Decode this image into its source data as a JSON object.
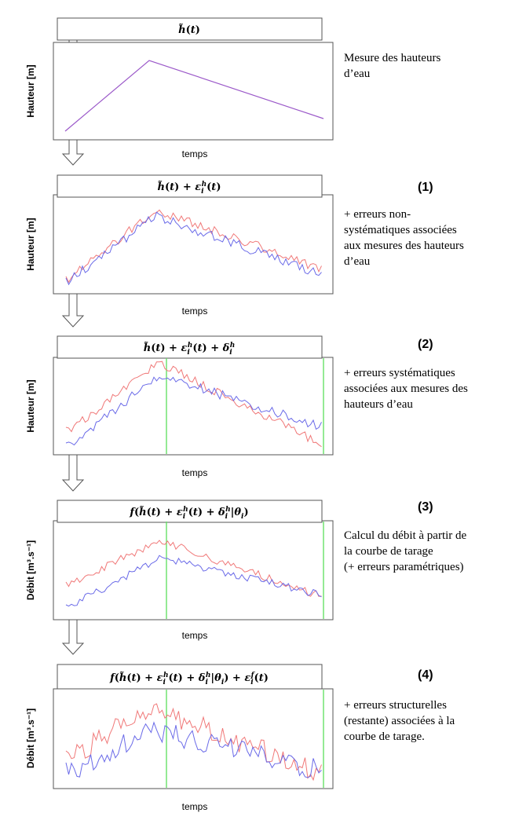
{
  "panels": [
    {
      "formula_html": "<tspan font-style=\"italic\">h̃</tspan>(<tspan font-style=\"italic\">t</tspan>)",
      "ylabel": "Hauteur [m]",
      "xlabel": "temps",
      "step": "",
      "description": [
        "Mesure des hauteurs",
        "d’eau"
      ]
    },
    {
      "formula_html": "<tspan font-style=\"italic\">h̃</tspan>(<tspan font-style=\"italic\">t</tspan>) + <tspan font-style=\"italic\">ε</tspan><tspan font-style=\"italic\" font-size=\"9\" dy=\"4\">i</tspan><tspan font-style=\"italic\" font-size=\"9\" dx=\"-3\" dy=\"-9\">h</tspan><tspan dy=\"5\">(</tspan><tspan font-style=\"italic\">t</tspan>)",
      "ylabel": "Hauteur [m]",
      "xlabel": "temps",
      "step": "(1)",
      "description": [
        "+ erreurs non-",
        "systématiques associées",
        "aux mesures des hauteurs",
        "d’eau"
      ]
    },
    {
      "formula_html": "<tspan font-style=\"italic\">h̃</tspan>(<tspan font-style=\"italic\">t</tspan>) + <tspan font-style=\"italic\">ε</tspan><tspan font-style=\"italic\" font-size=\"9\" dy=\"4\">i</tspan><tspan font-style=\"italic\" font-size=\"9\" dx=\"-3\" dy=\"-9\">h</tspan><tspan dy=\"5\">(</tspan><tspan font-style=\"italic\">t</tspan>) + <tspan font-style=\"italic\">δ</tspan><tspan font-style=\"italic\" font-size=\"9\" dy=\"4\">i</tspan><tspan font-style=\"italic\" font-size=\"9\" dx=\"-3\" dy=\"-9\">h</tspan>",
      "ylabel": "Hauteur [m]",
      "xlabel": "temps",
      "step": "(2)",
      "description": [
        "+ erreurs systématiques",
        "associées aux mesures des",
        "hauteurs d’eau"
      ]
    },
    {
      "formula_html": "<tspan font-style=\"italic\">f</tspan>(<tspan font-style=\"italic\">h̃</tspan>(<tspan font-style=\"italic\">t</tspan>) + <tspan font-style=\"italic\">ε</tspan><tspan font-style=\"italic\" font-size=\"9\" dy=\"4\">i</tspan><tspan font-style=\"italic\" font-size=\"9\" dx=\"-3\" dy=\"-9\">h</tspan><tspan dy=\"5\">(</tspan><tspan font-style=\"italic\">t</tspan>) + <tspan font-style=\"italic\">δ</tspan><tspan font-style=\"italic\" font-size=\"9\" dy=\"4\">i</tspan><tspan font-style=\"italic\" font-size=\"9\" dx=\"-3\" dy=\"-9\">h</tspan><tspan dy=\"5\">|</tspan><tspan font-style=\"italic\">θ</tspan><tspan font-style=\"italic\" font-size=\"9\" dy=\"4\">i</tspan><tspan dy=\"-4\">)</tspan>",
      "ylabel": "Débit [m³.s⁻¹]",
      "xlabel": "temps",
      "step": "(3)",
      "description": [
        "Calcul du débit à partir de",
        "la courbe de tarage",
        "(+ erreurs paramétriques)"
      ]
    },
    {
      "formula_html": "<tspan font-style=\"italic\">f</tspan>(<tspan font-style=\"italic\">h̃</tspan>(<tspan font-style=\"italic\">t</tspan>) + <tspan font-style=\"italic\">ε</tspan><tspan font-style=\"italic\" font-size=\"9\" dy=\"4\">i</tspan><tspan font-style=\"italic\" font-size=\"9\" dx=\"-3\" dy=\"-9\">h</tspan><tspan dy=\"5\">(</tspan><tspan font-style=\"italic\">t</tspan>) + <tspan font-style=\"italic\">δ</tspan><tspan font-style=\"italic\" font-size=\"9\" dy=\"4\">i</tspan><tspan font-style=\"italic\" font-size=\"9\" dx=\"-3\" dy=\"-9\">h</tspan><tspan dy=\"5\">|</tspan><tspan font-style=\"italic\">θ</tspan><tspan font-style=\"italic\" font-size=\"9\" dy=\"4\">i</tspan><tspan dy=\"-4\">) + </tspan><tspan font-style=\"italic\">ε</tspan><tspan font-style=\"italic\" font-size=\"9\" dy=\"4\">i</tspan><tspan font-style=\"italic\" font-size=\"9\" dx=\"-3\" dy=\"-9\">f</tspan><tspan dy=\"5\">(</tspan><tspan font-style=\"italic\">t</tspan>)",
      "ylabel": "Débit [m³.s⁻¹]",
      "xlabel": "temps",
      "step": "(4)",
      "description": [
        "+ erreurs structurelles",
        "(restante) associées à la",
        "courbe de tarage."
      ]
    }
  ],
  "colors": {
    "base_curve": "#9b59c9",
    "red_series": "#f07878",
    "blue_series": "#6a6ae8",
    "marker": "#66e066",
    "frame": "#555555"
  }
}
